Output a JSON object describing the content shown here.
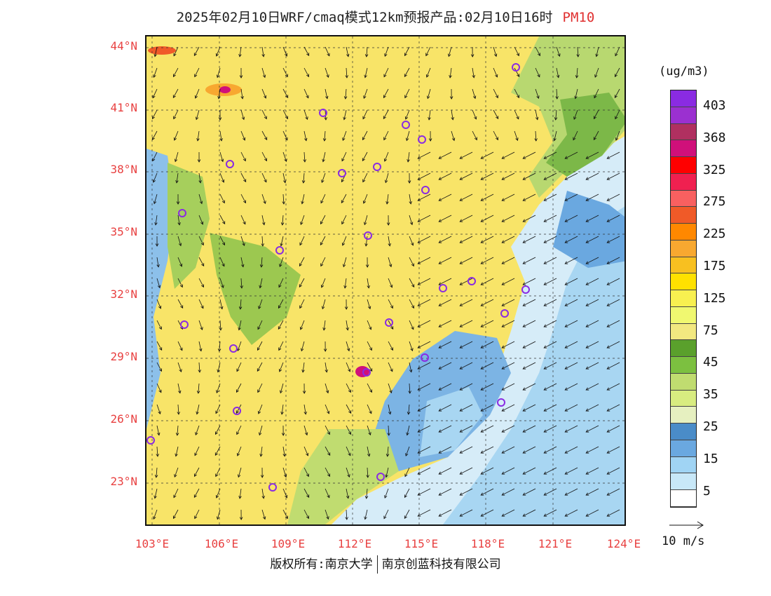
{
  "title": {
    "main": "2025年02月10日WRF/cmaq模式12km预报产品:02月10日16时",
    "pollutant": "PM10"
  },
  "lat_labels": [
    "44°N",
    "41°N",
    "38°N",
    "35°N",
    "32°N",
    "29°N",
    "26°N",
    "23°N"
  ],
  "lon_labels": [
    "103°E",
    "106°E",
    "109°E",
    "112°E",
    "115°E",
    "118°E",
    "121°E",
    "124°E"
  ],
  "colorbar": {
    "unit": "(ug/m3)",
    "labels": [
      "403",
      "368",
      "325",
      "275",
      "225",
      "175",
      "125",
      "75",
      "45",
      "35",
      "25",
      "15",
      "5"
    ],
    "colors": [
      "#8a2be2",
      "#9b30d0",
      "#b03060",
      "#d0107a",
      "#ff0000",
      "#f02050",
      "#f86060",
      "#f05a28",
      "#ff8800",
      "#f8a830",
      "#f8c020",
      "#ffe100",
      "#f8f050",
      "#f0f870",
      "#f2e880",
      "#5aa02c",
      "#7cc040",
      "#c0dc70",
      "#d8ec80",
      "#e6f0c0",
      "#4a8cc8",
      "#6aa8e0",
      "#a0d4f4",
      "#c8e8f8",
      "#ffffff"
    ]
  },
  "wind_scale": {
    "label": "10 m/s"
  },
  "footer": {
    "left": "版权所有:南京大学",
    "right": "南京创蓝科技有限公司"
  }
}
